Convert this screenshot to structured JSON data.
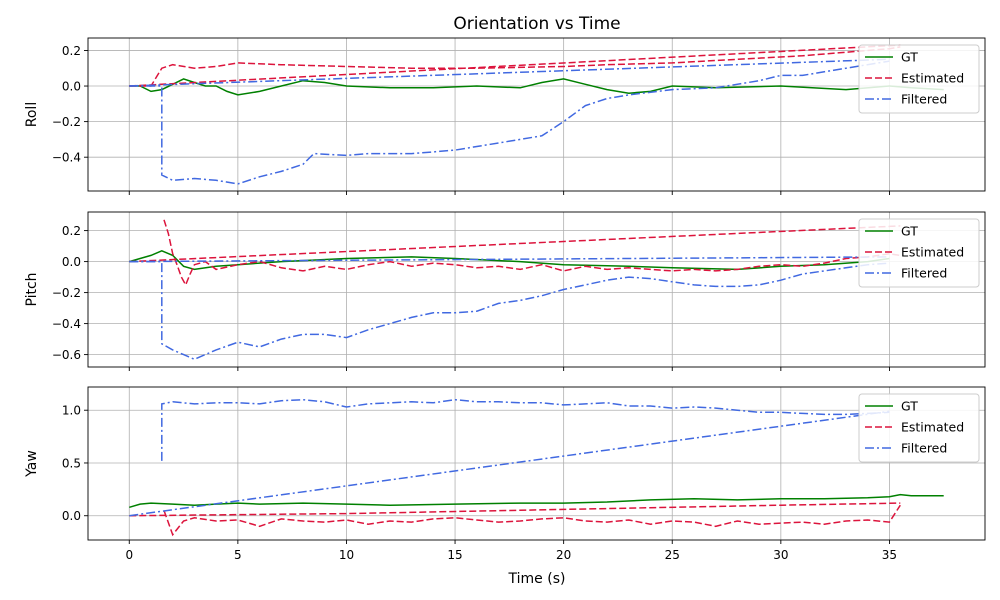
{
  "chart_data": {
    "type": "line",
    "title": "Orientation vs Time",
    "xlabel": "Time (s)",
    "xlim": [
      -1.9,
      39.4
    ],
    "xticks": [
      0,
      5,
      10,
      15,
      20,
      25,
      30,
      35
    ],
    "xtick_labels": [
      "0",
      "5",
      "10",
      "15",
      "20",
      "25",
      "30",
      "35"
    ],
    "grid": true,
    "legend_position": "top-right",
    "colors": {
      "GT": "#008000",
      "Estimated": "#dc143c",
      "Filtered": "#4169e1"
    },
    "legend": [
      {
        "name": "GT",
        "color": "#008000",
        "style": "solid"
      },
      {
        "name": "Estimated",
        "color": "#dc143c",
        "style": "dashed"
      },
      {
        "name": "Filtered",
        "color": "#4169e1",
        "style": "dashdot"
      }
    ],
    "subplots": [
      {
        "ylabel": "Roll",
        "ylim": [
          -0.59,
          0.27
        ],
        "yticks": [
          0.2,
          0.0,
          -0.2,
          -0.4
        ],
        "ytick_labels": [
          "0.2",
          "0.0",
          "−0.2",
          "−0.4"
        ],
        "series": [
          {
            "name": "GT",
            "x": [
              0,
              0.5,
              1,
              1.5,
              2,
              2.5,
              3,
              3.5,
              4,
              4.5,
              5,
              6,
              7,
              8,
              9,
              10,
              12,
              14,
              16,
              18,
              19,
              20,
              21,
              22,
              23,
              24,
              25,
              27,
              30,
              33,
              35,
              36,
              37.5
            ],
            "y": [
              0,
              0,
              -0.03,
              -0.02,
              0.01,
              0.04,
              0.02,
              0.0,
              0.0,
              -0.03,
              -0.05,
              -0.03,
              0.0,
              0.03,
              0.02,
              0.0,
              -0.01,
              -0.01,
              0.0,
              -0.01,
              0.02,
              0.04,
              0.01,
              -0.02,
              -0.04,
              -0.03,
              0.0,
              -0.01,
              0.0,
              -0.02,
              0.0,
              -0.01,
              -0.02
            ]
          },
          {
            "name": "Estimated",
            "x": [
              0,
              1,
              1.5,
              2,
              3,
              4,
              5,
              7,
              10,
              13,
              16,
              20,
              22,
              25,
              28,
              31,
              33,
              35,
              35.5
            ],
            "y": [
              0,
              0.0,
              0.1,
              0.12,
              0.1,
              0.11,
              0.13,
              0.12,
              0.11,
              0.1,
              0.1,
              0.11,
              0.12,
              0.13,
              0.15,
              0.17,
              0.19,
              0.21,
              0.22
            ]
          },
          {
            "name": "Estimated",
            "x": [
              0,
              35.5
            ],
            "y": [
              0,
              0.23
            ]
          },
          {
            "name": "Filtered",
            "x": [
              0,
              1.5,
              1.5,
              2,
              3,
              4,
              5,
              6,
              7,
              8,
              8.5,
              10,
              11,
              12,
              13,
              14,
              15,
              16,
              17,
              18,
              19,
              20,
              21,
              22,
              23,
              25,
              27,
              29,
              30,
              31,
              32,
              33,
              35
            ],
            "y": [
              0,
              0.0,
              -0.5,
              -0.53,
              -0.52,
              -0.53,
              -0.55,
              -0.51,
              -0.48,
              -0.44,
              -0.38,
              -0.39,
              -0.38,
              -0.38,
              -0.38,
              -0.37,
              -0.36,
              -0.34,
              -0.32,
              -0.3,
              -0.28,
              -0.2,
              -0.11,
              -0.07,
              -0.05,
              -0.02,
              -0.01,
              0.03,
              0.06,
              0.06,
              0.08,
              0.1,
              0.14
            ]
          },
          {
            "name": "Filtered",
            "x": [
              0,
              35
            ],
            "y": [
              0,
              0.15
            ]
          }
        ]
      },
      {
        "ylabel": "Pitch",
        "ylim": [
          -0.68,
          0.32
        ],
        "yticks": [
          0.2,
          0.0,
          -0.2,
          -0.4,
          -0.6
        ],
        "ytick_labels": [
          "0.2",
          "0.0",
          "−0.2",
          "−0.4",
          "−0.6"
        ],
        "series": [
          {
            "name": "GT",
            "x": [
              0,
              0.5,
              1,
              1.5,
              2,
              2.5,
              3,
              4,
              5,
              7,
              10,
              13,
              15,
              18,
              20,
              23,
              25,
              28,
              30,
              32,
              34,
              35
            ],
            "y": [
              0,
              0.02,
              0.04,
              0.07,
              0.04,
              -0.03,
              -0.05,
              -0.03,
              -0.02,
              0.0,
              0.02,
              0.03,
              0.02,
              0.0,
              -0.02,
              -0.03,
              -0.04,
              -0.05,
              -0.03,
              -0.02,
              0.0,
              0.02
            ]
          },
          {
            "name": "Estimated",
            "x": [
              1.6,
              1.8,
              2,
              2.2,
              2.4,
              2.6,
              2.8,
              3,
              3.5,
              4,
              5,
              6,
              7,
              8,
              9,
              10,
              11,
              12,
              13,
              14,
              15,
              16,
              17,
              18,
              19,
              20,
              21,
              22,
              23,
              24,
              25,
              26,
              27,
              28,
              29,
              30,
              31,
              32,
              33,
              34,
              35,
              35.5
            ],
            "y": [
              0.27,
              0.18,
              0.05,
              -0.02,
              -0.1,
              -0.15,
              -0.08,
              -0.02,
              0.0,
              -0.05,
              -0.02,
              0.0,
              -0.04,
              -0.06,
              -0.03,
              -0.05,
              -0.02,
              0.0,
              -0.03,
              -0.01,
              -0.02,
              -0.04,
              -0.03,
              -0.05,
              -0.02,
              -0.06,
              -0.03,
              -0.05,
              -0.04,
              -0.05,
              -0.06,
              -0.05,
              -0.06,
              -0.05,
              -0.03,
              -0.02,
              -0.03,
              -0.01,
              0.02,
              0.03,
              0.05,
              0.04
            ]
          },
          {
            "name": "Estimated",
            "x": [
              0,
              35.5
            ],
            "y": [
              0,
              0.23
            ]
          },
          {
            "name": "Filtered",
            "x": [
              0,
              1.5,
              1.5,
              2,
              2.5,
              3,
              4,
              5,
              6,
              7,
              8,
              9,
              10,
              11,
              12,
              13,
              14,
              15,
              16,
              17,
              18,
              19,
              20,
              21,
              22,
              23,
              24,
              25,
              26,
              27,
              28,
              29,
              30,
              31,
              32,
              33,
              34,
              35
            ],
            "y": [
              0,
              0.0,
              -0.53,
              -0.57,
              -0.6,
              -0.63,
              -0.57,
              -0.52,
              -0.55,
              -0.5,
              -0.47,
              -0.47,
              -0.49,
              -0.44,
              -0.4,
              -0.36,
              -0.33,
              -0.33,
              -0.32,
              -0.27,
              -0.25,
              -0.22,
              -0.18,
              -0.15,
              -0.12,
              -0.1,
              -0.11,
              -0.13,
              -0.15,
              -0.16,
              -0.16,
              -0.15,
              -0.12,
              -0.08,
              -0.06,
              -0.04,
              -0.02,
              -0.01
            ]
          },
          {
            "name": "Filtered",
            "x": [
              0,
              35
            ],
            "y": [
              0,
              0.03
            ]
          }
        ]
      },
      {
        "ylabel": "Yaw",
        "ylim": [
          -0.23,
          1.22
        ],
        "yticks": [
          1.0,
          0.5,
          0.0
        ],
        "ytick_labels": [
          "1.0",
          "0.5",
          "0.0"
        ],
        "series": [
          {
            "name": "GT",
            "x": [
              0,
              0.5,
              1,
              2,
              3,
              4,
              5,
              6,
              8,
              10,
              12,
              15,
              18,
              20,
              22,
              24,
              26,
              28,
              30,
              32,
              34,
              35,
              35.5,
              36,
              37.5
            ],
            "y": [
              0.08,
              0.11,
              0.12,
              0.11,
              0.1,
              0.11,
              0.12,
              0.11,
              0.12,
              0.11,
              0.1,
              0.11,
              0.12,
              0.12,
              0.13,
              0.15,
              0.16,
              0.15,
              0.16,
              0.16,
              0.17,
              0.18,
              0.2,
              0.19,
              0.19
            ]
          },
          {
            "name": "Estimated",
            "x": [
              1.6,
              2,
              2.5,
              3,
              4,
              5,
              6,
              7,
              8,
              9,
              10,
              11,
              12,
              13,
              14,
              15,
              16,
              17,
              18,
              19,
              20,
              21,
              22,
              23,
              24,
              25,
              26,
              27,
              28,
              29,
              30,
              31,
              32,
              33,
              34,
              35,
              35.5
            ],
            "y": [
              0.05,
              -0.18,
              -0.05,
              -0.02,
              -0.05,
              -0.04,
              -0.1,
              -0.03,
              -0.05,
              -0.06,
              -0.04,
              -0.08,
              -0.05,
              -0.06,
              -0.03,
              -0.02,
              -0.04,
              -0.06,
              -0.05,
              -0.03,
              -0.02,
              -0.05,
              -0.06,
              -0.04,
              -0.08,
              -0.05,
              -0.06,
              -0.1,
              -0.05,
              -0.08,
              -0.07,
              -0.06,
              -0.08,
              -0.05,
              -0.04,
              -0.06,
              0.1
            ]
          },
          {
            "name": "Estimated",
            "x": [
              0,
              10,
              20,
              30,
              35.5
            ],
            "y": [
              0,
              0.02,
              0.06,
              0.1,
              0.12
            ]
          },
          {
            "name": "Filtered",
            "x": [
              1.5,
              1.5,
              2,
              3,
              4,
              5,
              6,
              7,
              8,
              9,
              10,
              11,
              12,
              13,
              14,
              15,
              16,
              17,
              18,
              19,
              20,
              21,
              22,
              23,
              24,
              25,
              26,
              27,
              28,
              29,
              30,
              31,
              32,
              33,
              34,
              35
            ],
            "y": [
              0.52,
              1.06,
              1.08,
              1.06,
              1.07,
              1.07,
              1.06,
              1.09,
              1.1,
              1.08,
              1.03,
              1.06,
              1.07,
              1.08,
              1.07,
              1.1,
              1.08,
              1.08,
              1.07,
              1.07,
              1.05,
              1.06,
              1.07,
              1.04,
              1.04,
              1.02,
              1.03,
              1.02,
              1.0,
              0.98,
              0.98,
              0.97,
              0.96,
              0.96,
              0.97,
              0.98
            ]
          },
          {
            "name": "Filtered",
            "x": [
              0,
              35
            ],
            "y": [
              0,
              0.99
            ]
          }
        ]
      }
    ]
  }
}
